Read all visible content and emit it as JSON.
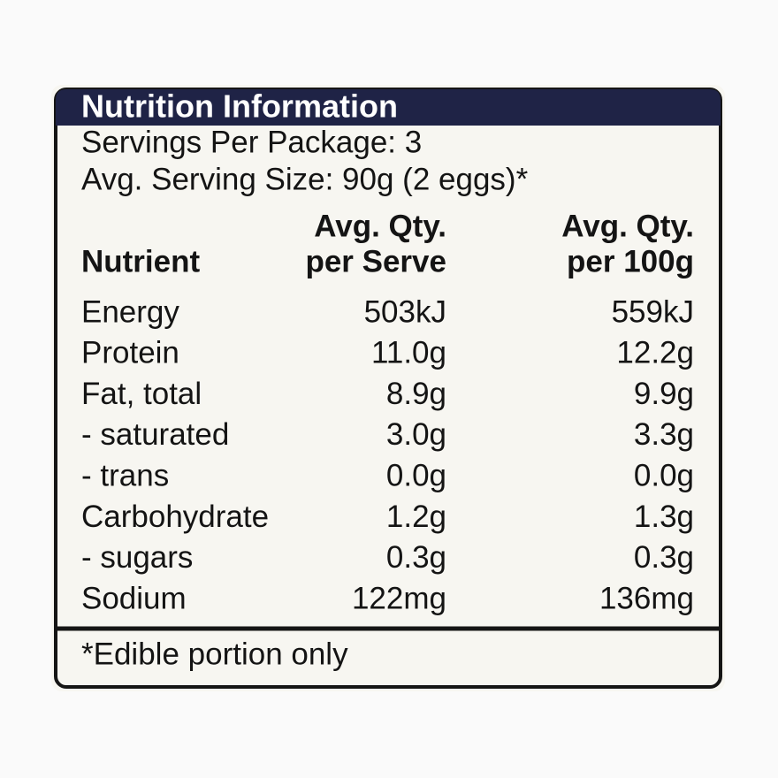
{
  "header": {
    "title": "Nutrition Information"
  },
  "servings": [
    "Servings Per Package: 3",
    "Avg. Serving Size: 90g (2 eggs)*"
  ],
  "table": {
    "columns": [
      [
        "Nutrient"
      ],
      [
        "Avg. Qty.",
        "per Serve"
      ],
      [
        "Avg. Qty.",
        "per 100g"
      ]
    ],
    "rows": [
      [
        "Energy",
        "503kJ",
        "559kJ"
      ],
      [
        "Protein",
        "11.0g",
        "12.2g"
      ],
      [
        "Fat, total",
        "8.9g",
        "9.9g"
      ],
      [
        "- saturated",
        "3.0g",
        "3.3g"
      ],
      [
        "- trans",
        "0.0g",
        "0.0g"
      ],
      [
        "Carbohydrate",
        "1.2g",
        "1.3g"
      ],
      [
        "- sugars",
        "0.3g",
        "0.3g"
      ],
      [
        "Sodium",
        "122mg",
        "136mg"
      ]
    ]
  },
  "footnote": "*Edible portion only"
}
